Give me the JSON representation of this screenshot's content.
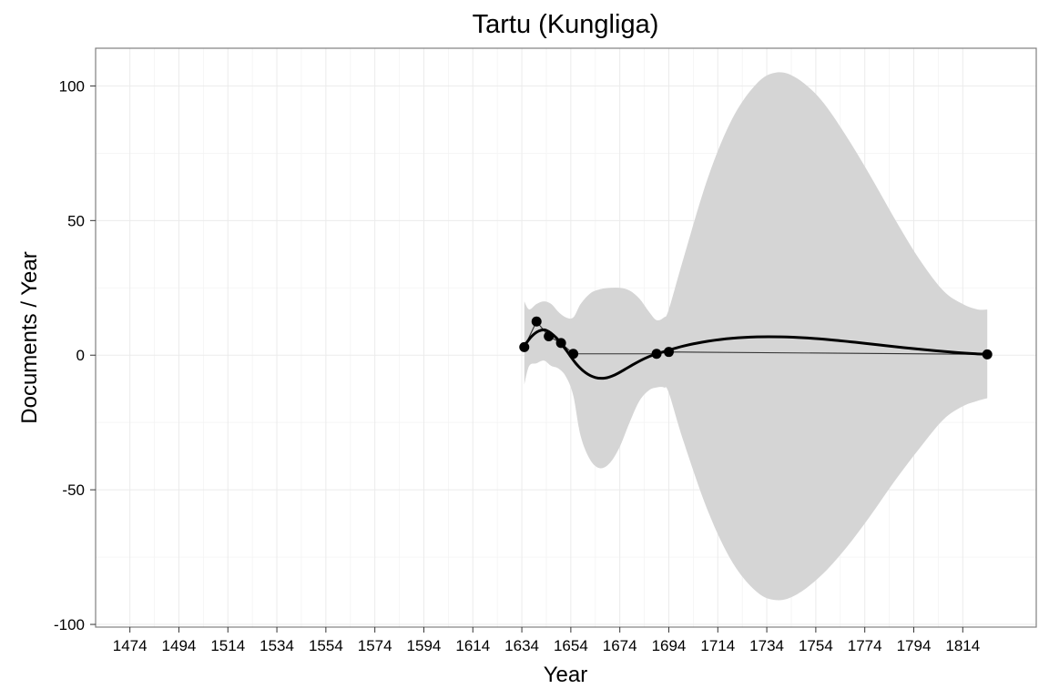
{
  "chart_data": {
    "type": "line",
    "title": "Tartu (Kungliga)",
    "xlabel": "Year",
    "ylabel": "Documents / Year",
    "xlim": [
      1460,
      1844
    ],
    "ylim": [
      -101,
      114
    ],
    "x_ticks": [
      1474,
      1494,
      1514,
      1534,
      1554,
      1574,
      1594,
      1614,
      1634,
      1654,
      1674,
      1694,
      1714,
      1734,
      1754,
      1774,
      1794,
      1814
    ],
    "x_tick_labels": [
      "1474",
      "1494",
      "1514",
      "1534",
      "1554",
      "1574",
      "1594",
      "1614",
      "1634",
      "1654",
      "1674",
      "1694",
      "1714",
      "1734",
      "1754",
      "1774",
      "1794",
      "1814"
    ],
    "y_ticks": [
      -100,
      -50,
      0,
      50,
      100
    ],
    "y_tick_labels": [
      "-100",
      "-50",
      "0",
      "50",
      "100"
    ],
    "grid": true,
    "colors": {
      "points": "#000000",
      "smooth": "#000000",
      "connector": "#333333",
      "band": "#d5d5d5",
      "grid": "#ebebeb",
      "panel_border": "#808080"
    },
    "points": [
      {
        "x": 1635,
        "y": 3
      },
      {
        "x": 1640,
        "y": 12.5
      },
      {
        "x": 1645,
        "y": 7
      },
      {
        "x": 1650,
        "y": 4.5
      },
      {
        "x": 1655,
        "y": 0.5
      },
      {
        "x": 1689,
        "y": 0.5
      },
      {
        "x": 1694,
        "y": 1.2
      },
      {
        "x": 1824,
        "y": 0.3
      }
    ],
    "smooth": [
      {
        "x": 1635,
        "y": 3.5
      },
      {
        "x": 1638,
        "y": 7
      },
      {
        "x": 1641,
        "y": 9
      },
      {
        "x": 1644,
        "y": 9.2
      },
      {
        "x": 1648,
        "y": 6.5
      },
      {
        "x": 1652,
        "y": 2
      },
      {
        "x": 1656,
        "y": -3
      },
      {
        "x": 1660,
        "y": -6.5
      },
      {
        "x": 1664,
        "y": -8.3
      },
      {
        "x": 1668,
        "y": -8.5
      },
      {
        "x": 1672,
        "y": -7.3
      },
      {
        "x": 1676,
        "y": -5.3
      },
      {
        "x": 1680,
        "y": -3.2
      },
      {
        "x": 1684,
        "y": -1.3
      },
      {
        "x": 1688,
        "y": 0.2
      },
      {
        "x": 1692,
        "y": 1.3
      },
      {
        "x": 1700,
        "y": 3.4
      },
      {
        "x": 1710,
        "y": 5.2
      },
      {
        "x": 1720,
        "y": 6.3
      },
      {
        "x": 1730,
        "y": 6.8
      },
      {
        "x": 1740,
        "y": 6.8
      },
      {
        "x": 1750,
        "y": 6.4
      },
      {
        "x": 1760,
        "y": 5.7
      },
      {
        "x": 1770,
        "y": 4.8
      },
      {
        "x": 1780,
        "y": 3.8
      },
      {
        "x": 1790,
        "y": 2.8
      },
      {
        "x": 1800,
        "y": 1.9
      },
      {
        "x": 1810,
        "y": 1.1
      },
      {
        "x": 1818,
        "y": 0.6
      },
      {
        "x": 1824,
        "y": 0.3
      }
    ],
    "band": [
      {
        "x": 1635,
        "upper": 20,
        "lower": -11
      },
      {
        "x": 1637,
        "upper": 17,
        "lower": -4
      },
      {
        "x": 1640,
        "upper": 19,
        "lower": -3
      },
      {
        "x": 1643,
        "upper": 20,
        "lower": -2
      },
      {
        "x": 1646,
        "upper": 19,
        "lower": -4
      },
      {
        "x": 1649,
        "upper": 16,
        "lower": -5
      },
      {
        "x": 1652,
        "upper": 14,
        "lower": -8
      },
      {
        "x": 1655,
        "upper": 14,
        "lower": -15
      },
      {
        "x": 1658,
        "upper": 19,
        "lower": -30
      },
      {
        "x": 1662,
        "upper": 23,
        "lower": -39
      },
      {
        "x": 1666,
        "upper": 24.5,
        "lower": -42
      },
      {
        "x": 1670,
        "upper": 25,
        "lower": -40
      },
      {
        "x": 1674,
        "upper": 25,
        "lower": -34
      },
      {
        "x": 1678,
        "upper": 24,
        "lower": -25
      },
      {
        "x": 1682,
        "upper": 21,
        "lower": -17
      },
      {
        "x": 1686,
        "upper": 16,
        "lower": -13
      },
      {
        "x": 1689,
        "upper": 13,
        "lower": -12
      },
      {
        "x": 1692,
        "upper": 14,
        "lower": -12
      },
      {
        "x": 1694,
        "upper": 17,
        "lower": -14
      },
      {
        "x": 1700,
        "upper": 36,
        "lower": -32
      },
      {
        "x": 1710,
        "upper": 66,
        "lower": -58
      },
      {
        "x": 1720,
        "upper": 88,
        "lower": -77
      },
      {
        "x": 1730,
        "upper": 101,
        "lower": -88
      },
      {
        "x": 1738,
        "upper": 105,
        "lower": -91
      },
      {
        "x": 1746,
        "upper": 103,
        "lower": -89
      },
      {
        "x": 1756,
        "upper": 95,
        "lower": -82
      },
      {
        "x": 1766,
        "upper": 82,
        "lower": -72
      },
      {
        "x": 1776,
        "upper": 67,
        "lower": -60
      },
      {
        "x": 1786,
        "upper": 51,
        "lower": -47
      },
      {
        "x": 1796,
        "upper": 36,
        "lower": -35
      },
      {
        "x": 1806,
        "upper": 24,
        "lower": -24
      },
      {
        "x": 1814,
        "upper": 19,
        "lower": -19
      },
      {
        "x": 1820,
        "upper": 17,
        "lower": -17
      },
      {
        "x": 1824,
        "upper": 17,
        "lower": -16
      }
    ]
  }
}
